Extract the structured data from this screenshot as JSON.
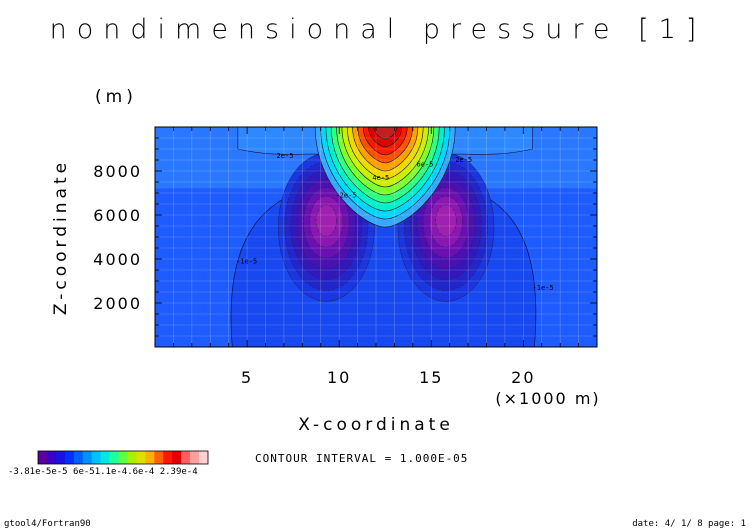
{
  "chart_data": {
    "type": "contour",
    "title": "nondimensional pressure [1]",
    "xlabel": "X-coordinate",
    "xunit": "(×1000 m)",
    "ylabel": "Z-coordinate",
    "yunit": "(m)",
    "xlim": [
      0,
      24
    ],
    "ylim": [
      0,
      10000
    ],
    "xticks": [
      "5",
      "10",
      "15",
      "20"
    ],
    "xtick_values": [
      5,
      10,
      15,
      20
    ],
    "yticks": [
      "2000",
      "4000",
      "6000",
      "8000"
    ],
    "ytick_values": [
      2000,
      4000,
      6000,
      8000
    ],
    "grid": true,
    "contour_interval_text": "CONTOUR INTERVAL = 1.000E-05",
    "contour_labels": [
      {
        "text": "2e-5",
        "x": 6.6,
        "z": 8600
      },
      {
        "text": "2e-5",
        "x": 16.3,
        "z": 8400
      },
      {
        "text": "4e-5",
        "x": 11.8,
        "z": 7600
      },
      {
        "text": "6e-5",
        "x": 14.2,
        "z": 8200
      },
      {
        "text": "-2e-5",
        "x": 9.8,
        "z": 6800
      },
      {
        "text": "-1e-5",
        "x": 4.4,
        "z": 3800
      },
      {
        "text": "-1e-5",
        "x": 20.5,
        "z": 2600
      }
    ],
    "fields": {
      "background": -7e-06,
      "top_max": {
        "x": 12.5,
        "z": 9700,
        "value": 0.000239
      },
      "minima": [
        {
          "x": 9.3,
          "z": 5800,
          "value": -3.81e-05
        },
        {
          "x": 15.8,
          "z": 5800,
          "value": -3.81e-05
        }
      ]
    },
    "colorbar": {
      "colors": [
        "#5a00a0",
        "#3a00c8",
        "#1a10e0",
        "#0030ff",
        "#0060ff",
        "#0090ff",
        "#00c0ff",
        "#00e8e0",
        "#20ffa0",
        "#60ff40",
        "#a8f000",
        "#e0e000",
        "#ffb000",
        "#ff6000",
        "#ff1800",
        "#e00000",
        "#ff6060",
        "#ffa0a0",
        "#ffd0d0"
      ],
      "labels": "-3.81e-5e-5 6e-51.1e-4.6e-4  2.39e-4"
    }
  },
  "footer": {
    "left": "gtool4/Fortran90",
    "right": "date: 4/ 1/ 8 page: 1"
  }
}
